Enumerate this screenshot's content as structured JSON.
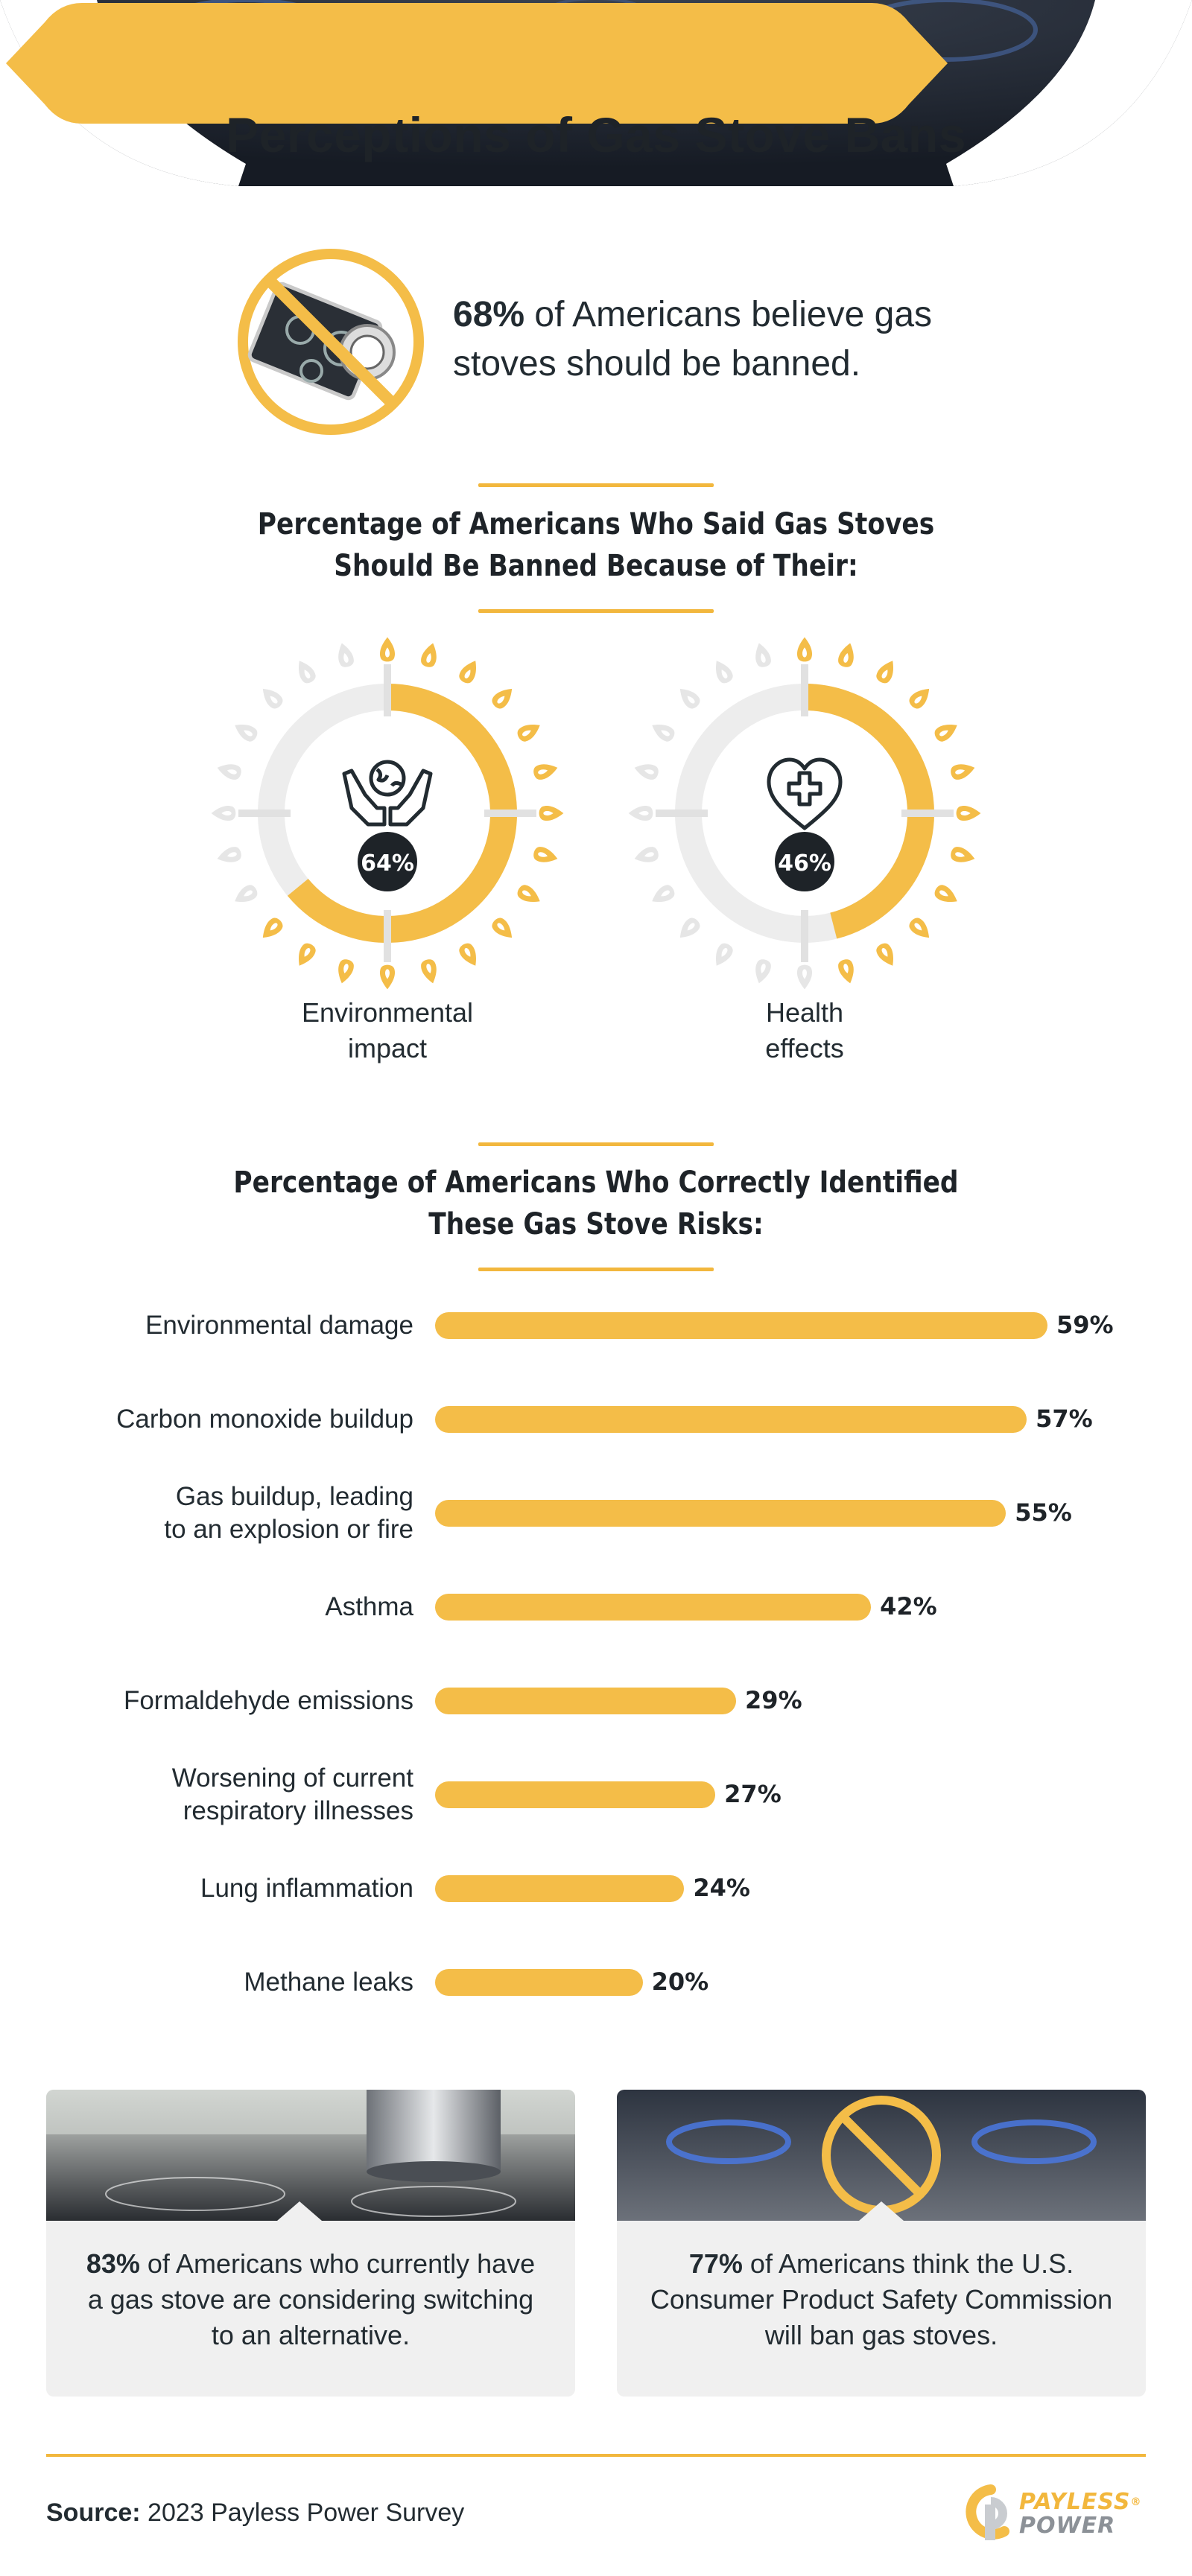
{
  "title": "Perceptions of Gas Stove Bans",
  "intro": {
    "percent": "68%",
    "text": " of Americans believe gas stoves should be banned.",
    "icon": "banned-stove-icon"
  },
  "section1_title": "Percentage of Americans Who Said Gas Stoves Should Be Banned Because of Their:",
  "section2_title": "Percentage of Americans Who Correctly Identified These Gas Stove Risks:",
  "colors": {
    "accent": "#f4bd48",
    "dark": "#1e2328",
    "ring_bg": "#ededed",
    "card_bg": "#f0f0f0"
  },
  "donuts": [
    {
      "label": "64%",
      "value": 64,
      "caption_line1": "Environmental",
      "caption_line2": "impact",
      "icon": "earth-in-hands-icon"
    },
    {
      "label": "46%",
      "value": 46,
      "caption_line1": "Health",
      "caption_line2": "effects",
      "icon": "heart-cross-icon"
    }
  ],
  "chart_data": {
    "type": "bar",
    "orientation": "horizontal",
    "title": "Percentage of Americans Who Correctly Identified These Gas Stove Risks:",
    "categories": [
      "Environmental damage",
      "Carbon monoxide buildup",
      "Gas buildup, leading to an explosion or fire",
      "Asthma",
      "Formaldehyde emissions",
      "Worsening of current respiratory illnesses",
      "Lung inflammation",
      "Methane leaks"
    ],
    "values": [
      59,
      57,
      55,
      42,
      29,
      27,
      24,
      20
    ],
    "value_labels": [
      "59%",
      "57%",
      "55%",
      "42%",
      "29%",
      "27%",
      "24%",
      "20%"
    ],
    "xlim": [
      0,
      59
    ],
    "unit": "%"
  },
  "cards": [
    {
      "percent": "83%",
      "text": " of Americans who currently have a gas stove are considering switching to an alternative."
    },
    {
      "percent": "77%",
      "text": " of Americans think the U.S. Consumer Product Safety Commission will ban gas stoves."
    }
  ],
  "footer": {
    "source_label": "Source:",
    "source_text": " 2023 Payless Power Survey",
    "logo_line1": "PAYLESS",
    "logo_line2": "POWER",
    "logo_mark": "®"
  }
}
